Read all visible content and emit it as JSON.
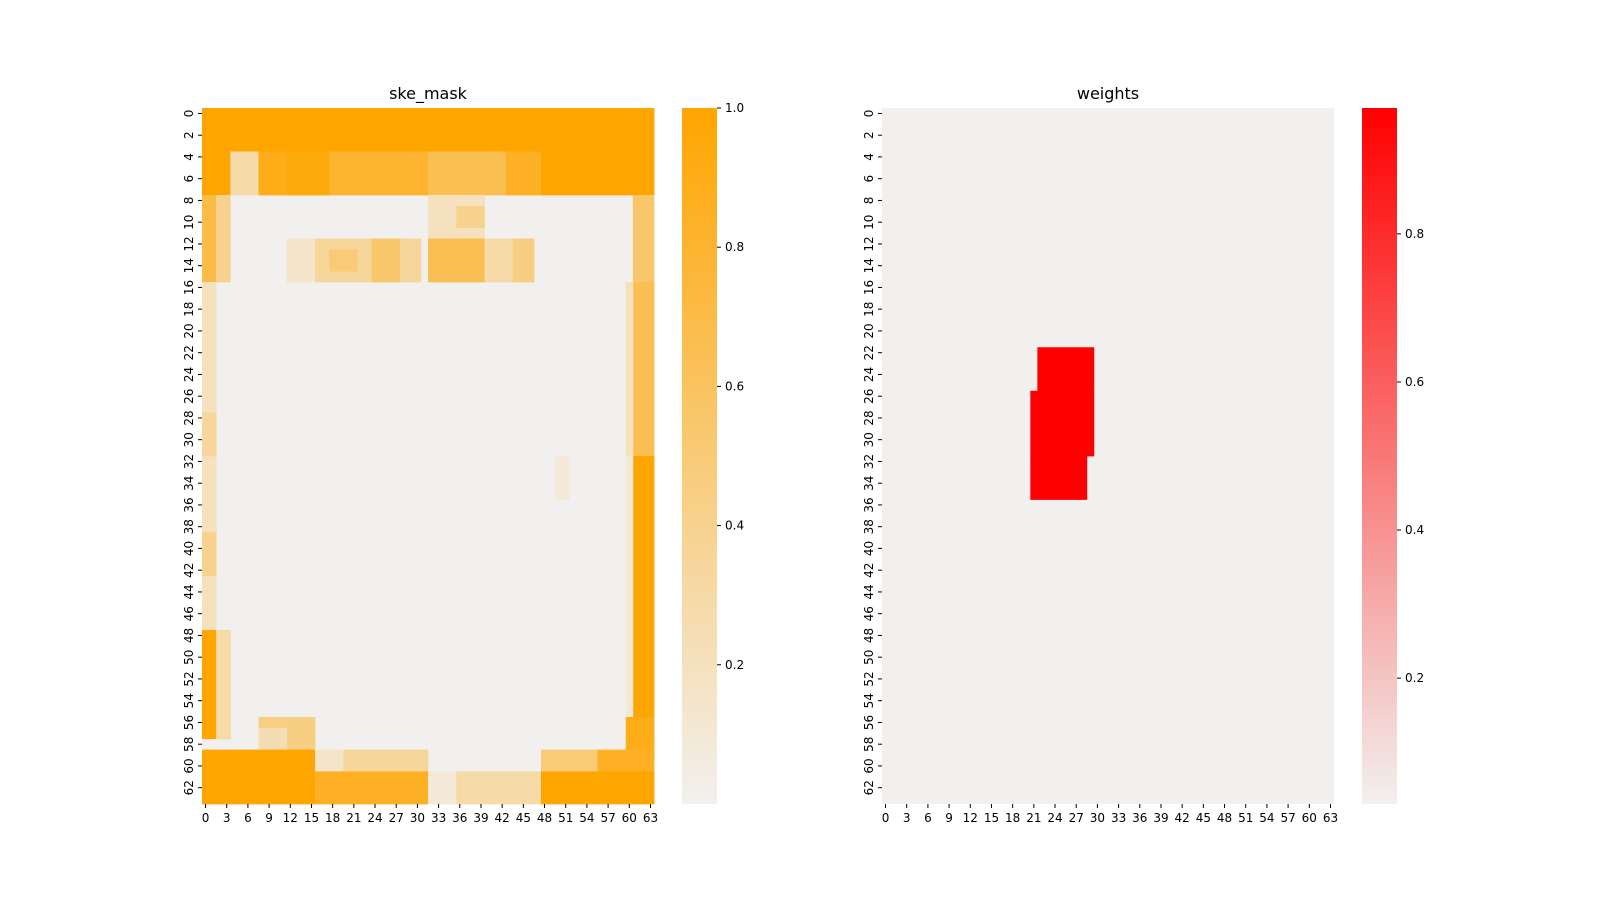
{
  "chart_data": [
    {
      "type": "heatmap",
      "title": "ske_mask",
      "xlabel": "",
      "ylabel": "",
      "n_rows": 64,
      "n_cols": 64,
      "x_ticks": [
        0,
        3,
        6,
        9,
        12,
        15,
        18,
        21,
        24,
        27,
        30,
        33,
        36,
        39,
        42,
        45,
        48,
        51,
        54,
        57,
        60,
        63
      ],
      "y_ticks": [
        0,
        2,
        4,
        6,
        8,
        10,
        12,
        14,
        16,
        18,
        20,
        22,
        24,
        26,
        28,
        30,
        32,
        34,
        36,
        38,
        40,
        42,
        44,
        46,
        48,
        50,
        52,
        54,
        56,
        58,
        60,
        62
      ],
      "colorbar": {
        "ticks": [
          "0.2",
          "0.4",
          "0.6",
          "0.8",
          "1.0"
        ],
        "tick_values": [
          0.2,
          0.4,
          0.6,
          0.8,
          1.0
        ],
        "vmin": 0.0,
        "vmax": 1.0
      },
      "colormap": {
        "low": "#f2f0ee",
        "high": "#ffa500"
      },
      "background_value": 0.0,
      "regions": [
        {
          "rows": [
            0,
            3
          ],
          "cols": [
            0,
            63
          ],
          "value": 1.0
        },
        {
          "rows": [
            4,
            7
          ],
          "cols": [
            0,
            3
          ],
          "value": 1.0
        },
        {
          "rows": [
            4,
            7
          ],
          "cols": [
            4,
            7
          ],
          "value": 0.3
        },
        {
          "rows": [
            4,
            7
          ],
          "cols": [
            8,
            11
          ],
          "value": 0.9
        },
        {
          "rows": [
            4,
            7
          ],
          "cols": [
            12,
            17
          ],
          "value": 0.95
        },
        {
          "rows": [
            4,
            7
          ],
          "cols": [
            18,
            31
          ],
          "value": 0.8
        },
        {
          "rows": [
            4,
            7
          ],
          "cols": [
            32,
            42
          ],
          "value": 0.65
        },
        {
          "rows": [
            4,
            7
          ],
          "cols": [
            43,
            47
          ],
          "value": 0.85
        },
        {
          "rows": [
            4,
            7
          ],
          "cols": [
            48,
            63
          ],
          "value": 1.0
        },
        {
          "rows": [
            8,
            15
          ],
          "cols": [
            0,
            1
          ],
          "value": 0.7
        },
        {
          "rows": [
            8,
            15
          ],
          "cols": [
            2,
            3
          ],
          "value": 0.4
        },
        {
          "rows": [
            8,
            11
          ],
          "cols": [
            32,
            39
          ],
          "value": 0.2
        },
        {
          "rows": [
            9,
            10
          ],
          "cols": [
            36,
            39
          ],
          "value": 0.4
        },
        {
          "rows": [
            12,
            15
          ],
          "cols": [
            12,
            19
          ],
          "value": 0.15
        },
        {
          "rows": [
            12,
            15
          ],
          "cols": [
            16,
            30
          ],
          "value": 0.35
        },
        {
          "rows": [
            13,
            14
          ],
          "cols": [
            18,
            21
          ],
          "value": 0.5
        },
        {
          "rows": [
            12,
            15
          ],
          "cols": [
            24,
            27
          ],
          "value": 0.55
        },
        {
          "rows": [
            12,
            15
          ],
          "cols": [
            32,
            39
          ],
          "value": 0.65
        },
        {
          "rows": [
            12,
            15
          ],
          "cols": [
            40,
            46
          ],
          "value": 0.3
        },
        {
          "rows": [
            12,
            15
          ],
          "cols": [
            44,
            46
          ],
          "value": 0.45
        },
        {
          "rows": [
            8,
            15
          ],
          "cols": [
            61,
            63
          ],
          "value": 0.55
        },
        {
          "rows": [
            16,
            47
          ],
          "cols": [
            0,
            1
          ],
          "value": 0.2
        },
        {
          "rows": [
            28,
            31
          ],
          "cols": [
            0,
            1
          ],
          "value": 0.35
        },
        {
          "rows": [
            39,
            42
          ],
          "cols": [
            0,
            1
          ],
          "value": 0.4
        },
        {
          "rows": [
            16,
            31
          ],
          "cols": [
            61,
            63
          ],
          "value": 0.65
        },
        {
          "rows": [
            16,
            31
          ],
          "cols": [
            60,
            60
          ],
          "value": 0.2
        },
        {
          "rows": [
            32,
            55
          ],
          "cols": [
            61,
            63
          ],
          "value": 1.0
        },
        {
          "rows": [
            32,
            55
          ],
          "cols": [
            60,
            60
          ],
          "value": 0.1
        },
        {
          "rows": [
            32,
            35
          ],
          "cols": [
            50,
            51
          ],
          "value": 0.1
        },
        {
          "rows": [
            48,
            57
          ],
          "cols": [
            0,
            3
          ],
          "value": 1.0
        },
        {
          "rows": [
            48,
            57
          ],
          "cols": [
            2,
            3
          ],
          "value": 0.3
        },
        {
          "rows": [
            56,
            58
          ],
          "cols": [
            8,
            15
          ],
          "value": 0.45
        },
        {
          "rows": [
            57,
            58
          ],
          "cols": [
            8,
            11
          ],
          "value": 0.25
        },
        {
          "rows": [
            56,
            59
          ],
          "cols": [
            60,
            63
          ],
          "value": 0.9
        },
        {
          "rows": [
            59,
            60
          ],
          "cols": [
            0,
            15
          ],
          "value": 1.0
        },
        {
          "rows": [
            59,
            60
          ],
          "cols": [
            16,
            19
          ],
          "value": 0.15
        },
        {
          "rows": [
            59,
            60
          ],
          "cols": [
            20,
            31
          ],
          "value": 0.35
        },
        {
          "rows": [
            59,
            60
          ],
          "cols": [
            48,
            55
          ],
          "value": 0.5
        },
        {
          "rows": [
            59,
            60
          ],
          "cols": [
            56,
            63
          ],
          "value": 0.85
        },
        {
          "rows": [
            61,
            63
          ],
          "cols": [
            0,
            15
          ],
          "value": 1.0
        },
        {
          "rows": [
            61,
            63
          ],
          "cols": [
            16,
            31
          ],
          "value": 0.85
        },
        {
          "rows": [
            61,
            63
          ],
          "cols": [
            32,
            35
          ],
          "value": 0.1
        },
        {
          "rows": [
            61,
            63
          ],
          "cols": [
            36,
            47
          ],
          "value": 0.3
        },
        {
          "rows": [
            61,
            63
          ],
          "cols": [
            48,
            63
          ],
          "value": 1.0
        }
      ]
    },
    {
      "type": "heatmap",
      "title": "weights",
      "xlabel": "",
      "ylabel": "",
      "n_rows": 64,
      "n_cols": 64,
      "x_ticks": [
        0,
        3,
        6,
        9,
        12,
        15,
        18,
        21,
        24,
        27,
        30,
        33,
        36,
        39,
        42,
        45,
        48,
        51,
        54,
        57,
        60,
        63
      ],
      "y_ticks": [
        0,
        2,
        4,
        6,
        8,
        10,
        12,
        14,
        16,
        18,
        20,
        22,
        24,
        26,
        28,
        30,
        32,
        34,
        36,
        38,
        40,
        42,
        44,
        46,
        48,
        50,
        52,
        54,
        56,
        58,
        60,
        62
      ],
      "colorbar": {
        "ticks": [
          "0.2",
          "0.4",
          "0.6",
          "0.8"
        ],
        "tick_values": [
          0.2,
          0.4,
          0.6,
          0.8
        ],
        "vmin": 0.03,
        "vmax": 0.97
      },
      "colormap": {
        "low": "#f2f0ee",
        "high": "#ff0000"
      },
      "background_value": 0.03,
      "regions": [
        {
          "rows": [
            22,
            25
          ],
          "cols": [
            22,
            29
          ],
          "value": 1.0
        },
        {
          "rows": [
            26,
            31
          ],
          "cols": [
            21,
            29
          ],
          "value": 1.0
        },
        {
          "rows": [
            32,
            35
          ],
          "cols": [
            21,
            28
          ],
          "value": 1.0
        }
      ]
    }
  ]
}
